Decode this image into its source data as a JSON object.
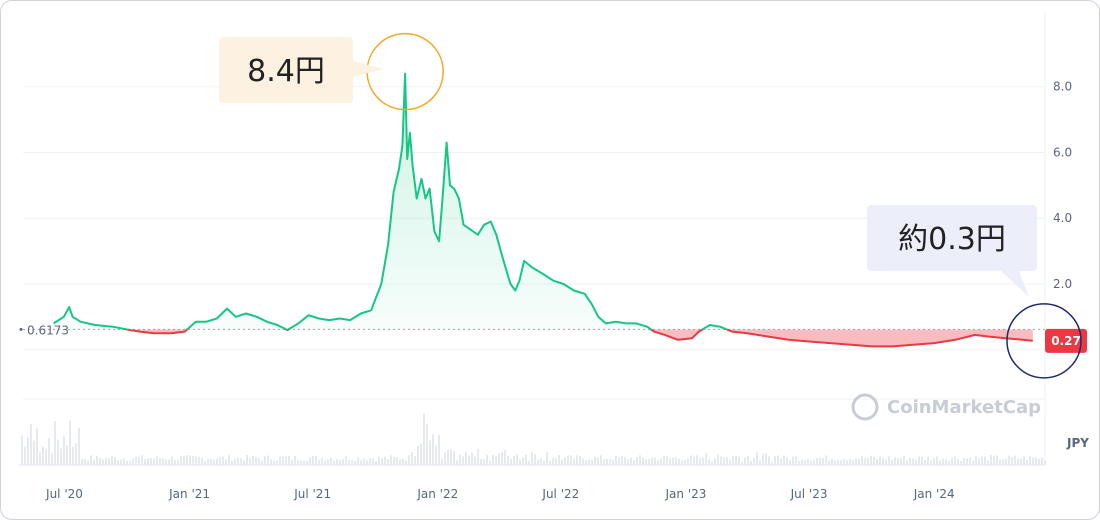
{
  "chart_data": {
    "type": "area",
    "currency": "JPY",
    "x_tick_labels": [
      "Jul '20",
      "Jan '21",
      "Jul '21",
      "Jan '22",
      "Jul '22",
      "Jan '23",
      "Jul '23",
      "Jan '24"
    ],
    "y_tick_labels": [
      "2.0",
      "4.0",
      "6.0",
      "8.0"
    ],
    "ylim": [
      -1.5,
      10
    ],
    "baseline_value": 0.6173,
    "baseline_label": "0.6173",
    "current_price_label": "0.27",
    "colors": {
      "above": "#16c784",
      "below": "#ea3943",
      "above_fill": "#16c784",
      "below_fill": "#ea3943"
    },
    "watermark": "CoinMarketCap",
    "annotations": [
      {
        "text": "8.4円",
        "date": "2021-11-14",
        "value": 8.4,
        "circle_color": "#f5a623",
        "box_color": "#fdf1e1"
      },
      {
        "text": "約0.3円",
        "date": "2024-05-20",
        "value": 0.27,
        "circle_color": "#1f2a6b",
        "box_color": "#eceff9"
      }
    ],
    "series": [
      {
        "points": [
          [
            "2020-06-15",
            0.8
          ],
          [
            "2020-06-30",
            1.0
          ],
          [
            "2020-07-08",
            1.3
          ],
          [
            "2020-07-13",
            1.0
          ],
          [
            "2020-07-25",
            0.85
          ],
          [
            "2020-08-15",
            0.75
          ],
          [
            "2020-09-10",
            0.7
          ],
          [
            "2020-10-05",
            0.6
          ],
          [
            "2020-10-20",
            0.55
          ],
          [
            "2020-11-10",
            0.5
          ],
          [
            "2020-12-05",
            0.5
          ],
          [
            "2020-12-25",
            0.55
          ],
          [
            "2021-01-10",
            0.85
          ],
          [
            "2021-01-25",
            0.85
          ],
          [
            "2021-02-10",
            0.95
          ],
          [
            "2021-02-25",
            1.25
          ],
          [
            "2021-03-10",
            1.0
          ],
          [
            "2021-03-25",
            1.1
          ],
          [
            "2021-04-10",
            1.0
          ],
          [
            "2021-04-25",
            0.85
          ],
          [
            "2021-05-10",
            0.75
          ],
          [
            "2021-05-25",
            0.6
          ],
          [
            "2021-06-10",
            0.8
          ],
          [
            "2021-06-25",
            1.05
          ],
          [
            "2021-07-10",
            0.95
          ],
          [
            "2021-07-25",
            0.9
          ],
          [
            "2021-08-10",
            0.95
          ],
          [
            "2021-08-25",
            0.9
          ],
          [
            "2021-09-10",
            1.1
          ],
          [
            "2021-09-25",
            1.2
          ],
          [
            "2021-10-10",
            2.0
          ],
          [
            "2021-10-20",
            3.2
          ],
          [
            "2021-10-28",
            4.8
          ],
          [
            "2021-11-05",
            5.5
          ],
          [
            "2021-11-10",
            6.2
          ],
          [
            "2021-11-14",
            8.4
          ],
          [
            "2021-11-17",
            5.8
          ],
          [
            "2021-11-21",
            6.6
          ],
          [
            "2021-11-25",
            5.6
          ],
          [
            "2021-12-01",
            4.6
          ],
          [
            "2021-12-08",
            5.2
          ],
          [
            "2021-12-14",
            4.6
          ],
          [
            "2021-12-20",
            4.9
          ],
          [
            "2021-12-27",
            3.6
          ],
          [
            "2022-01-03",
            3.3
          ],
          [
            "2022-01-08",
            4.6
          ],
          [
            "2022-01-14",
            6.3
          ],
          [
            "2022-01-19",
            5.0
          ],
          [
            "2022-01-25",
            4.9
          ],
          [
            "2022-02-01",
            4.6
          ],
          [
            "2022-02-08",
            3.8
          ],
          [
            "2022-02-15",
            3.7
          ],
          [
            "2022-02-22",
            3.6
          ],
          [
            "2022-03-01",
            3.5
          ],
          [
            "2022-03-10",
            3.8
          ],
          [
            "2022-03-20",
            3.9
          ],
          [
            "2022-03-28",
            3.5
          ],
          [
            "2022-04-05",
            2.9
          ],
          [
            "2022-04-12",
            2.4
          ],
          [
            "2022-04-18",
            2.0
          ],
          [
            "2022-04-25",
            1.8
          ],
          [
            "2022-05-01",
            2.1
          ],
          [
            "2022-05-08",
            2.7
          ],
          [
            "2022-05-20",
            2.5
          ],
          [
            "2022-06-05",
            2.3
          ],
          [
            "2022-06-20",
            2.1
          ],
          [
            "2022-07-05",
            2.0
          ],
          [
            "2022-07-20",
            1.8
          ],
          [
            "2022-08-05",
            1.7
          ],
          [
            "2022-08-15",
            1.4
          ],
          [
            "2022-08-25",
            1.0
          ],
          [
            "2022-09-05",
            0.8
          ],
          [
            "2022-09-20",
            0.85
          ],
          [
            "2022-10-05",
            0.8
          ],
          [
            "2022-10-20",
            0.8
          ],
          [
            "2022-11-05",
            0.7
          ],
          [
            "2022-11-15",
            0.55
          ],
          [
            "2022-12-01",
            0.45
          ],
          [
            "2022-12-20",
            0.3
          ],
          [
            "2023-01-10",
            0.35
          ],
          [
            "2023-01-20",
            0.55
          ],
          [
            "2023-02-05",
            0.75
          ],
          [
            "2023-02-20",
            0.7
          ],
          [
            "2023-03-10",
            0.55
          ],
          [
            "2023-04-01",
            0.5
          ],
          [
            "2023-05-01",
            0.4
          ],
          [
            "2023-06-01",
            0.3
          ],
          [
            "2023-07-01",
            0.25
          ],
          [
            "2023-08-01",
            0.2
          ],
          [
            "2023-09-01",
            0.15
          ],
          [
            "2023-10-01",
            0.1
          ],
          [
            "2023-11-01",
            0.1
          ],
          [
            "2023-12-01",
            0.15
          ],
          [
            "2024-01-01",
            0.2
          ],
          [
            "2024-02-01",
            0.3
          ],
          [
            "2024-03-01",
            0.45
          ],
          [
            "2024-03-20",
            0.4
          ],
          [
            "2024-04-15",
            0.35
          ],
          [
            "2024-05-10",
            0.3
          ],
          [
            "2024-05-25",
            0.27
          ]
        ]
      }
    ]
  }
}
